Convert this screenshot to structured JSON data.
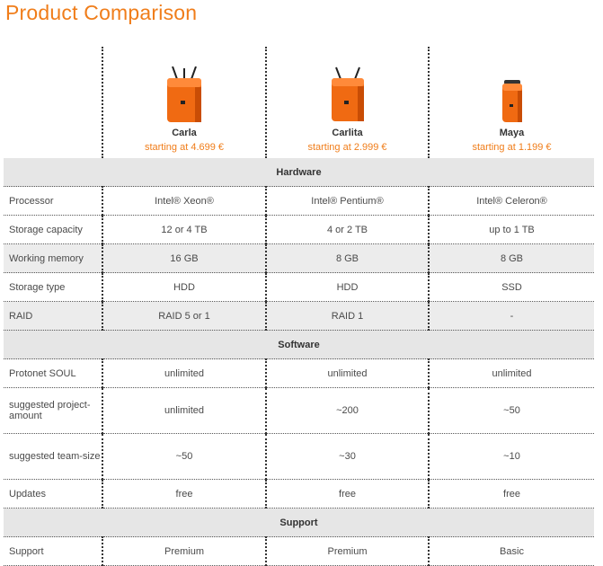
{
  "page": {
    "title": "Product Comparison"
  },
  "products": [
    {
      "name": "Carla",
      "price": "starting at 4.699 €",
      "icon": "orange-server-cube-large-icon"
    },
    {
      "name": "Carlita",
      "price": "starting at 2.999 €",
      "icon": "orange-server-cube-medium-icon"
    },
    {
      "name": "Maya",
      "price": "starting at 1.199 €",
      "icon": "orange-server-small-icon"
    }
  ],
  "sections": {
    "hardware": {
      "title": "Hardware",
      "rows": [
        {
          "label": "Processor",
          "values": [
            "Intel® Xeon®",
            "Intel® Pentium®",
            "Intel® Celeron®"
          ]
        },
        {
          "label": "Storage capacity",
          "values": [
            "12 or 4 TB",
            "4 or 2 TB",
            "up to 1 TB"
          ]
        },
        {
          "label": "Working memory",
          "values": [
            "16 GB",
            "8 GB",
            "8 GB"
          ]
        },
        {
          "label": "Storage type",
          "values": [
            "HDD",
            "HDD",
            "SSD"
          ]
        },
        {
          "label": "RAID",
          "values": [
            "RAID 5 or 1",
            "RAID 1",
            "-"
          ]
        }
      ]
    },
    "software": {
      "title": "Software",
      "rows": [
        {
          "label": "Protonet SOUL",
          "values": [
            "unlimited",
            "unlimited",
            "unlimited"
          ]
        },
        {
          "label": "suggested project-amount",
          "values": [
            "unlimited",
            "~200",
            "~50"
          ]
        },
        {
          "label": "suggested team-size",
          "values": [
            "~50",
            "~30",
            "~10"
          ]
        },
        {
          "label": "Updates",
          "values": [
            "free",
            "free",
            "free"
          ]
        }
      ]
    },
    "support": {
      "title": "Support",
      "rows": [
        {
          "label": "Support",
          "values": [
            "Premium",
            "Premium",
            "Basic"
          ]
        }
      ]
    }
  },
  "colors": {
    "accent": "#f07d1a",
    "shade": "#ececec",
    "section": "#e6e6e6"
  }
}
